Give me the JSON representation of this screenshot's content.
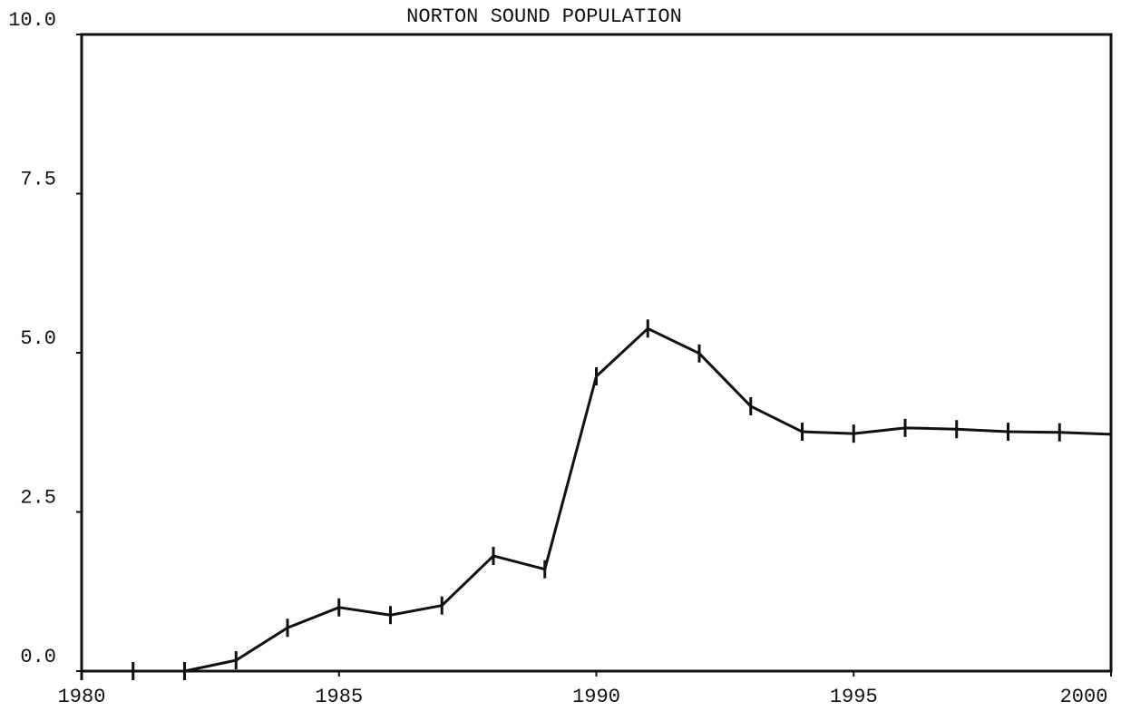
{
  "chart_data": {
    "type": "line",
    "title": "NORTON SOUND POPULATION",
    "x": [
      1980,
      1981,
      1982,
      1983,
      1984,
      1985,
      1986,
      1987,
      1988,
      1989,
      1990,
      1991,
      1992,
      1993,
      1994,
      1995,
      1996,
      1997,
      1998,
      1999,
      2000
    ],
    "series": [
      {
        "name": "Norton Sound",
        "color": "#111111",
        "values": [
          0,
          0,
          0,
          0.17,
          0.68,
          1.0,
          0.88,
          1.03,
          1.81,
          1.6,
          4.63,
          5.38,
          4.99,
          4.16,
          3.76,
          3.73,
          3.82,
          3.8,
          3.76,
          3.75,
          3.72
        ]
      }
    ],
    "xlim": [
      1980,
      2000
    ],
    "xticks": [
      1980,
      1985,
      1990,
      1995,
      2000
    ],
    "ylim": [
      0,
      10
    ],
    "yticks": [
      {
        "value": 0,
        "label": "0.0"
      },
      2.5,
      {
        "value": 5,
        "label": "5.0"
      },
      7.5,
      {
        "value": 10,
        "label": "10.0"
      }
    ]
  }
}
